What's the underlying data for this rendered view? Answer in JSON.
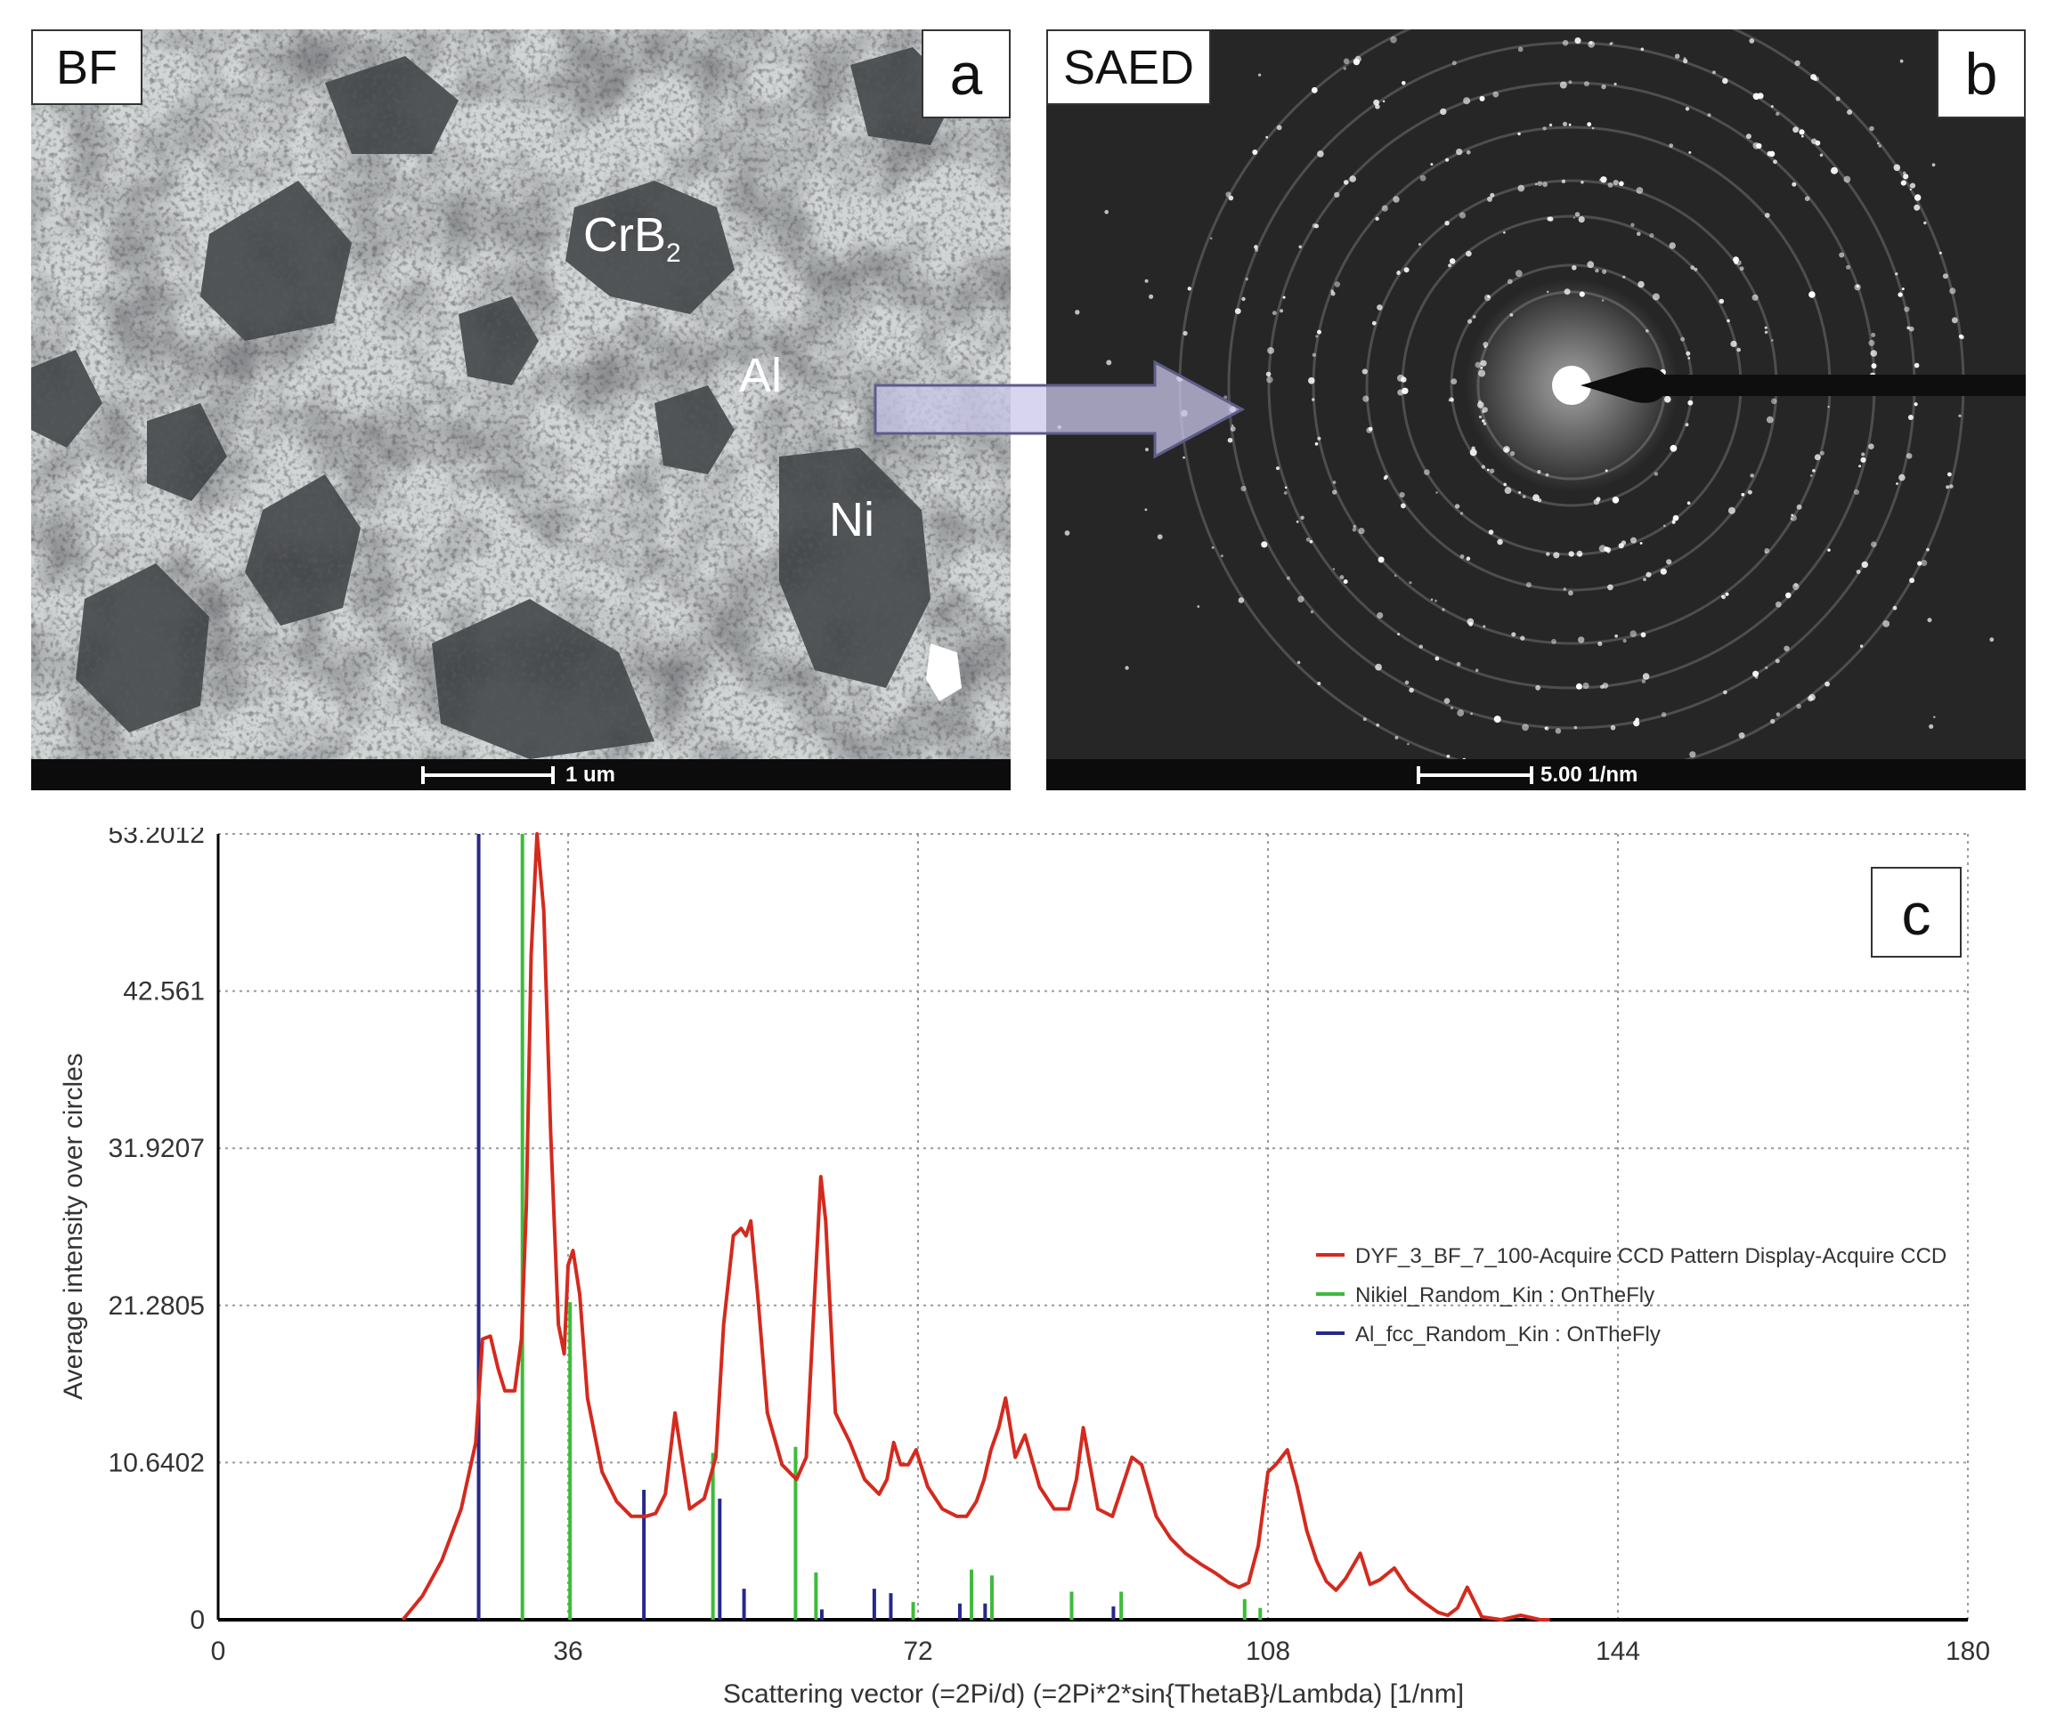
{
  "panel_a": {
    "mode_label": "BF",
    "panel_letter": "a",
    "phase_labels": {
      "crb2_main": "CrB",
      "crb2_sub": "2",
      "al": "Al",
      "ni": "Ni"
    },
    "scale_bar": "1 um"
  },
  "panel_b": {
    "mode_label": "SAED",
    "panel_letter": "b",
    "scale_bar": "5.00 1/nm"
  },
  "panel_c": {
    "panel_letter": "c"
  },
  "chart_data": {
    "type": "line",
    "xlabel": "Scattering vector (=2Pi/d) (=2Pi*2*sin{ThetaB}/Lambda) [1/nm]",
    "ylabel": "Average intensity over circles",
    "xlim": [
      0,
      180
    ],
    "ylim": [
      0,
      53.2012
    ],
    "x_ticks": [
      "0",
      "36",
      "72",
      "108",
      "144",
      "180"
    ],
    "y_ticks": [
      "0",
      "10.6402",
      "21.2805",
      "31.9207",
      "42.561",
      "53.2012"
    ],
    "grid": true,
    "legend_position": "right",
    "colors": {
      "profile": "#d42a1e",
      "nickel": "#3dbb3a",
      "aluminium": "#27288a"
    },
    "series": [
      {
        "name": "DYF_3_BF_7_100-Acquire CCD Pattern Display-Acquire CCD",
        "kind": "line",
        "x": [
          19,
          21,
          23,
          25,
          26.5,
          27.2,
          28,
          28.8,
          29.5,
          30.5,
          31.2,
          31.7,
          32.2,
          32.8,
          33.5,
          34.2,
          35,
          35.6,
          36,
          36.5,
          37.2,
          38,
          39.5,
          41,
          42.5,
          44,
          45,
          46,
          47,
          48.5,
          50,
          51.2,
          52,
          53,
          53.8,
          54.3,
          54.8,
          55.5,
          56.5,
          58,
          59.5,
          60.5,
          61.2,
          62,
          62.5,
          63.5,
          65,
          66.5,
          68,
          68.8,
          69.5,
          70.2,
          71,
          71.8,
          73,
          74.5,
          76,
          77,
          78,
          78.8,
          79.5,
          80.3,
          81,
          82,
          83,
          84.5,
          86,
          87.5,
          88.3,
          89,
          90.5,
          92,
          93,
          94,
          95,
          96.5,
          98,
          99.5,
          101,
          102.5,
          104,
          105,
          106,
          107,
          108,
          108.8,
          110,
          111,
          112,
          113,
          114,
          115,
          116,
          117.5,
          118.5,
          119.5,
          121,
          122.5,
          124,
          125.5,
          126.5,
          127.5,
          128.5,
          130,
          132,
          134,
          136,
          137
        ],
        "values": [
          0,
          1.6,
          4,
          7.5,
          12,
          19,
          19.2,
          17,
          15.5,
          15.5,
          19,
          28,
          45,
          53.2,
          48,
          33,
          20,
          18,
          24,
          25,
          22,
          15,
          10,
          8,
          7,
          7,
          7.2,
          8.5,
          14,
          7.5,
          8.2,
          11,
          20,
          26,
          26.5,
          26,
          27,
          22,
          14,
          10.5,
          9.5,
          11,
          20,
          30,
          27,
          14,
          12,
          9.5,
          8.5,
          9.5,
          12,
          10.5,
          10.5,
          11.5,
          9,
          7.5,
          7,
          7,
          8,
          9.5,
          11.5,
          13,
          15,
          11,
          12.5,
          9,
          7.5,
          7.5,
          9.5,
          13,
          7.5,
          7,
          9,
          11,
          10.5,
          7,
          5.5,
          4.5,
          3.8,
          3.2,
          2.5,
          2.2,
          2.5,
          5,
          10,
          10.5,
          11.5,
          9,
          6,
          4,
          2.6,
          2,
          2.8,
          4.5,
          2.4,
          2.7,
          3.5,
          2,
          1.2,
          0.5,
          0.3,
          0.8,
          2.2,
          0.2,
          0,
          0.3,
          0,
          0
        ]
      },
      {
        "name": "Nikiel_Random_Kin : OnTheFly",
        "kind": "stick",
        "x": [
          31.3,
          36.2,
          50.9,
          59.4,
          61.5,
          71.5,
          77.5,
          79.6,
          87.8,
          92.9,
          105.6,
          107.2
        ],
        "values": [
          53.2,
          21.5,
          11.3,
          11.7,
          3.2,
          1.2,
          3.4,
          3,
          1.9,
          1.9,
          1.4,
          0.8
        ]
      },
      {
        "name": "Al_fcc_Random_Kin : OnTheFly",
        "kind": "stick",
        "x": [
          26.8,
          43.8,
          51.6,
          54.1,
          62.1,
          67.5,
          69.2,
          76.3,
          78.9,
          92.1
        ],
        "values": [
          53.2,
          8.8,
          8.2,
          2.1,
          0.7,
          2.1,
          1.8,
          1.1,
          1.1,
          0.9
        ]
      }
    ]
  }
}
